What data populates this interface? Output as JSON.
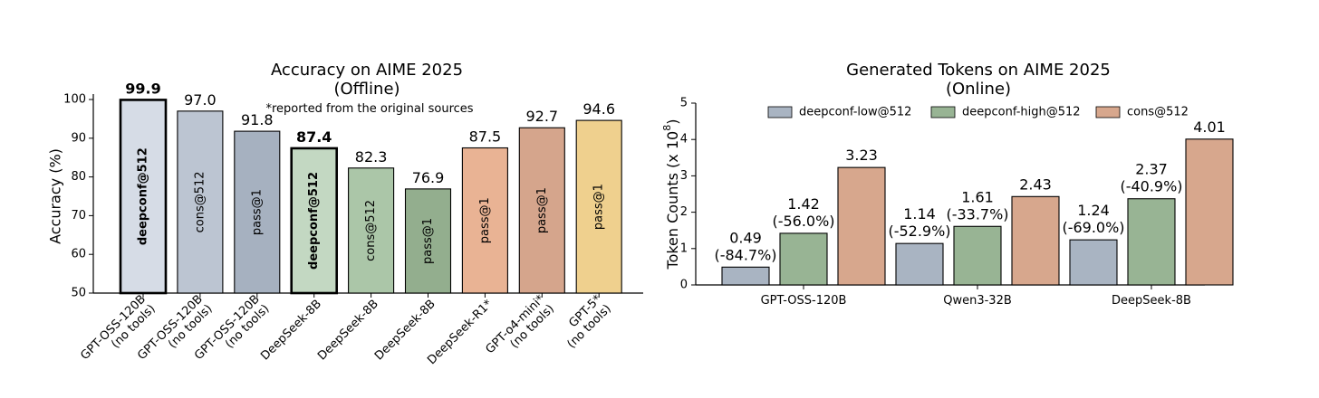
{
  "chart_data": [
    {
      "type": "bar",
      "title": "Accuracy on AIME 2025",
      "subtitle": "(Offline)",
      "note": "*reported from the original sources",
      "xlabel": "",
      "ylabel": "Accuracy (%)",
      "ylim": [
        50,
        100
      ],
      "yticks": [
        50,
        60,
        70,
        80,
        90,
        100
      ],
      "bars": [
        {
          "label": [
            "GPT-OSS-120B",
            "(no tools)"
          ],
          "value": 99.9,
          "value_label": "99.9",
          "inner_label": "deepconf@512",
          "bold": true,
          "color": "#d6dce6"
        },
        {
          "label": [
            "GPT-OSS-120B",
            "(no tools)"
          ],
          "value": 97.0,
          "value_label": "97.0",
          "inner_label": "cons@512",
          "bold": false,
          "color": "#bcc5d2"
        },
        {
          "label": [
            "GPT-OSS-120B",
            "(no tools)"
          ],
          "value": 91.8,
          "value_label": "91.8",
          "inner_label": "pass@1",
          "bold": false,
          "color": "#a6b1c0"
        },
        {
          "label": [
            "DeepSeek-8B"
          ],
          "value": 87.4,
          "value_label": "87.4",
          "inner_label": "deepconf@512",
          "bold": true,
          "color": "#c3d8c2"
        },
        {
          "label": [
            "DeepSeek-8B"
          ],
          "value": 82.3,
          "value_label": "82.3",
          "inner_label": "cons@512",
          "bold": false,
          "color": "#abc6a8"
        },
        {
          "label": [
            "DeepSeek-8B"
          ],
          "value": 76.9,
          "value_label": "76.9",
          "inner_label": "pass@1",
          "bold": false,
          "color": "#93ae8e"
        },
        {
          "label": [
            "DeepSeek-R1*"
          ],
          "value": 87.5,
          "value_label": "87.5",
          "inner_label": "pass@1",
          "bold": false,
          "color": "#e9b394"
        },
        {
          "label": [
            "GPT-o4-mini*",
            "(no tools)"
          ],
          "value": 92.7,
          "value_label": "92.7",
          "inner_label": "pass@1",
          "bold": false,
          "color": "#d5a58c"
        },
        {
          "label": [
            "GPT-5*",
            "(no tools)"
          ],
          "value": 94.6,
          "value_label": "94.6",
          "inner_label": "pass@1",
          "bold": false,
          "color": "#efd08e"
        }
      ]
    },
    {
      "type": "bar",
      "title": "Generated Tokens on AIME 2025",
      "subtitle": "(Online)",
      "xlabel": "",
      "ylabel_main": "Token Counts (x 10",
      "ylabel_exp": "8",
      "ylabel_end": ")",
      "ylim": [
        0,
        5
      ],
      "yticks": [
        0,
        1,
        2,
        3,
        4,
        5
      ],
      "categories": [
        "GPT-OSS-120B",
        "Qwen3-32B",
        "DeepSeek-8B"
      ],
      "series": [
        {
          "name": "deepconf-low@512",
          "color": "#a9b4c2",
          "values": [
            0.49,
            1.14,
            1.24
          ],
          "labels": [
            "0.49",
            "1.14",
            "1.24"
          ],
          "pct": [
            "(-84.7%)",
            "(-52.9%)",
            "(-69.0%)"
          ]
        },
        {
          "name": "deepconf-high@512",
          "color": "#98b494",
          "values": [
            1.42,
            1.61,
            2.37
          ],
          "labels": [
            "1.42",
            "1.61",
            "2.37"
          ],
          "pct": [
            "(-56.0%)",
            "(-33.7%)",
            "(-40.9%)"
          ]
        },
        {
          "name": "cons@512",
          "color": "#d7a78d",
          "values": [
            3.23,
            2.43,
            4.01
          ],
          "labels": [
            "3.23",
            "2.43",
            "4.01"
          ],
          "pct": [
            "",
            "",
            ""
          ]
        }
      ]
    }
  ]
}
